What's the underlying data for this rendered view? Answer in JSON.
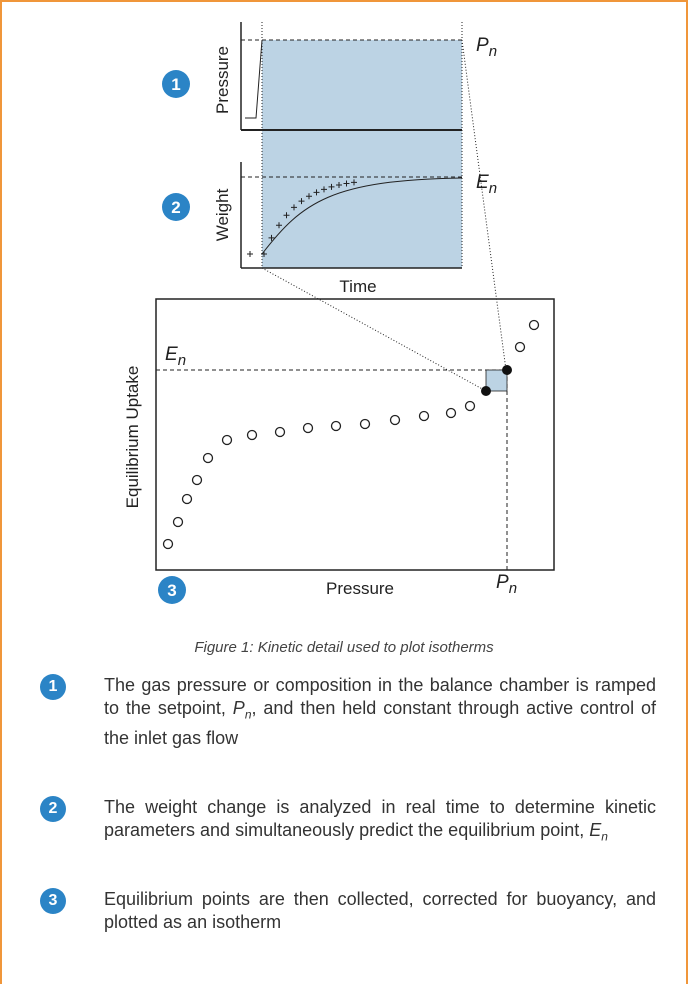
{
  "figure": {
    "badges": [
      "1",
      "2",
      "3"
    ],
    "pressure_axis_label": "Pressure",
    "weight_axis_label": "Weight",
    "time_axis_label": "Time",
    "pn_label": {
      "symbol": "P",
      "subscript": "n"
    },
    "en_label": {
      "symbol": "E",
      "subscript": "n"
    },
    "uptake_axis_label": "Equilibrium Uptake",
    "isotherm_x_label": "Pressure",
    "isotherm_en_label": {
      "symbol": "E",
      "subscript": "n"
    },
    "isotherm_pn_label": {
      "symbol": "P",
      "subscript": "n"
    },
    "caption": "Figure 1: Kinetic detail used to plot isotherms"
  },
  "steps": [
    {
      "number": "1",
      "before": "The gas pressure or composition in the balance chamber is ramped to the setpoint, ",
      "symbol": "P",
      "subscript": "n",
      "after": ", and then held constant through active control of the inlet gas flow"
    },
    {
      "number": "2",
      "before": "The weight change is analyzed in real time to determine kinetic parameters and simultaneously predict the equilibrium point, ",
      "symbol": "E",
      "subscript": "n",
      "after": ""
    },
    {
      "number": "3",
      "before": "Equilibrium points are then collected, corrected for buoyancy, and plotted as an isotherm",
      "symbol": "",
      "subscript": "",
      "after": ""
    }
  ]
}
